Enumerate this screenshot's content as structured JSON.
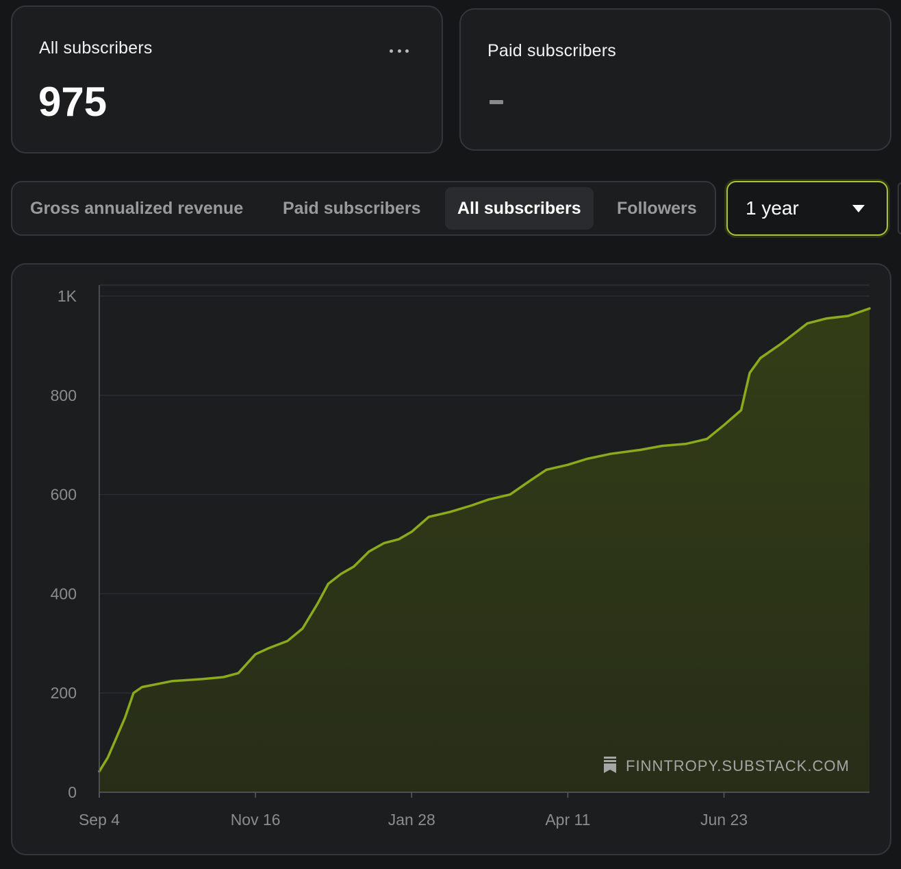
{
  "stats": {
    "all_subscribers": {
      "title": "All subscribers",
      "value": "975"
    },
    "paid_subscribers": {
      "title": "Paid subscribers",
      "value": "—"
    }
  },
  "tabs": [
    {
      "label": "Gross annualized revenue",
      "active": false
    },
    {
      "label": "Paid subscribers",
      "active": false
    },
    {
      "label": "All subscribers",
      "active": true
    },
    {
      "label": "Followers",
      "active": false
    }
  ],
  "range": {
    "selected": "1 year"
  },
  "icons": {
    "more": "more-horizontal-icon",
    "dropdown": "caret-down-icon",
    "watermark": "substack-bookmark-icon"
  },
  "colors": {
    "accent": "#8bab1c",
    "fill": "#2c3418",
    "background": "#151618",
    "card": "#1c1d1f"
  },
  "watermark": "FINNTROPY.SUBSTACK.COM",
  "chart_data": {
    "type": "area",
    "title": "",
    "xlabel": "",
    "ylabel": "",
    "x_ticks": [
      "Sep 4",
      "Nov 16",
      "Jan 28",
      "Apr 11",
      "Jun 23"
    ],
    "y_ticks": [
      "0",
      "200",
      "400",
      "600",
      "800",
      "1K"
    ],
    "ylim": [
      0,
      1000
    ],
    "xlim": [
      "Sep 4",
      "Aug 30"
    ],
    "grid": true,
    "series": [
      {
        "x": [
          "Sep 4",
          "Sep 8",
          "Sep 12",
          "Sep 16",
          "Sep 20",
          "Sep 24",
          "Oct 1",
          "Oct 8",
          "Oct 15",
          "Oct 22",
          "Nov 1",
          "Nov 8",
          "Nov 16",
          "Nov 22",
          "Dec 1",
          "Dec 8",
          "Dec 15",
          "Dec 20",
          "Dec 26",
          "Jan 1",
          "Jan 8",
          "Jan 15",
          "Jan 22",
          "Jan 28",
          "Feb 5",
          "Feb 15",
          "Feb 25",
          "Mar 5",
          "Mar 15",
          "Mar 25",
          "Apr 1",
          "Apr 11",
          "Apr 20",
          "May 1",
          "May 15",
          "May 25",
          "Jun 5",
          "Jun 15",
          "Jun 23",
          "Jul 1",
          "Jul 5",
          "Jul 10",
          "Jul 20",
          "Aug 1",
          "Aug 10",
          "Aug 20",
          "Aug 30"
        ],
        "values": [
          42,
          70,
          110,
          150,
          200,
          212,
          218,
          224,
          226,
          228,
          232,
          240,
          278,
          290,
          305,
          330,
          380,
          420,
          440,
          455,
          485,
          502,
          510,
          525,
          555,
          565,
          578,
          590,
          600,
          630,
          650,
          660,
          672,
          682,
          690,
          698,
          702,
          712,
          740,
          770,
          845,
          875,
          905,
          945,
          955,
          960,
          975
        ]
      }
    ]
  }
}
